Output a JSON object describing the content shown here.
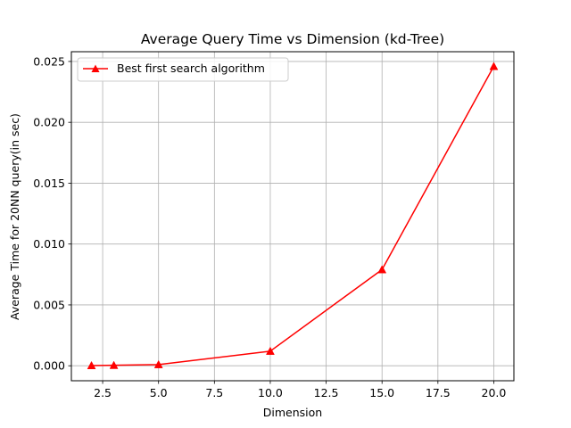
{
  "chart_data": {
    "type": "line",
    "title": "Average Query Time vs Dimension (kd-Tree)",
    "xlabel": "Dimension",
    "ylabel": "Average Time for 20NN query(in sec)",
    "xlim": [
      1.1,
      20.9
    ],
    "ylim": [
      -0.00123,
      0.0258
    ],
    "x_ticks": [
      2.5,
      5.0,
      7.5,
      10.0,
      12.5,
      15.0,
      17.5,
      20.0
    ],
    "x_tick_labels": [
      "2.5",
      "5.0",
      "7.5",
      "10.0",
      "12.5",
      "15.0",
      "17.5",
      "20.0"
    ],
    "y_ticks": [
      0.0,
      0.005,
      0.01,
      0.015,
      0.02,
      0.025
    ],
    "y_tick_labels": [
      "0.000",
      "0.005",
      "0.010",
      "0.015",
      "0.020",
      "0.025"
    ],
    "grid": true,
    "legend_position": "upper-left",
    "series": [
      {
        "name": "Best first search algorithm",
        "color": "#ff0000",
        "marker": "triangle-up",
        "x": [
          2,
          3,
          5,
          10,
          15,
          20
        ],
        "y": [
          2e-05,
          4e-05,
          0.0001,
          0.0012,
          0.0079,
          0.0246
        ]
      }
    ]
  }
}
